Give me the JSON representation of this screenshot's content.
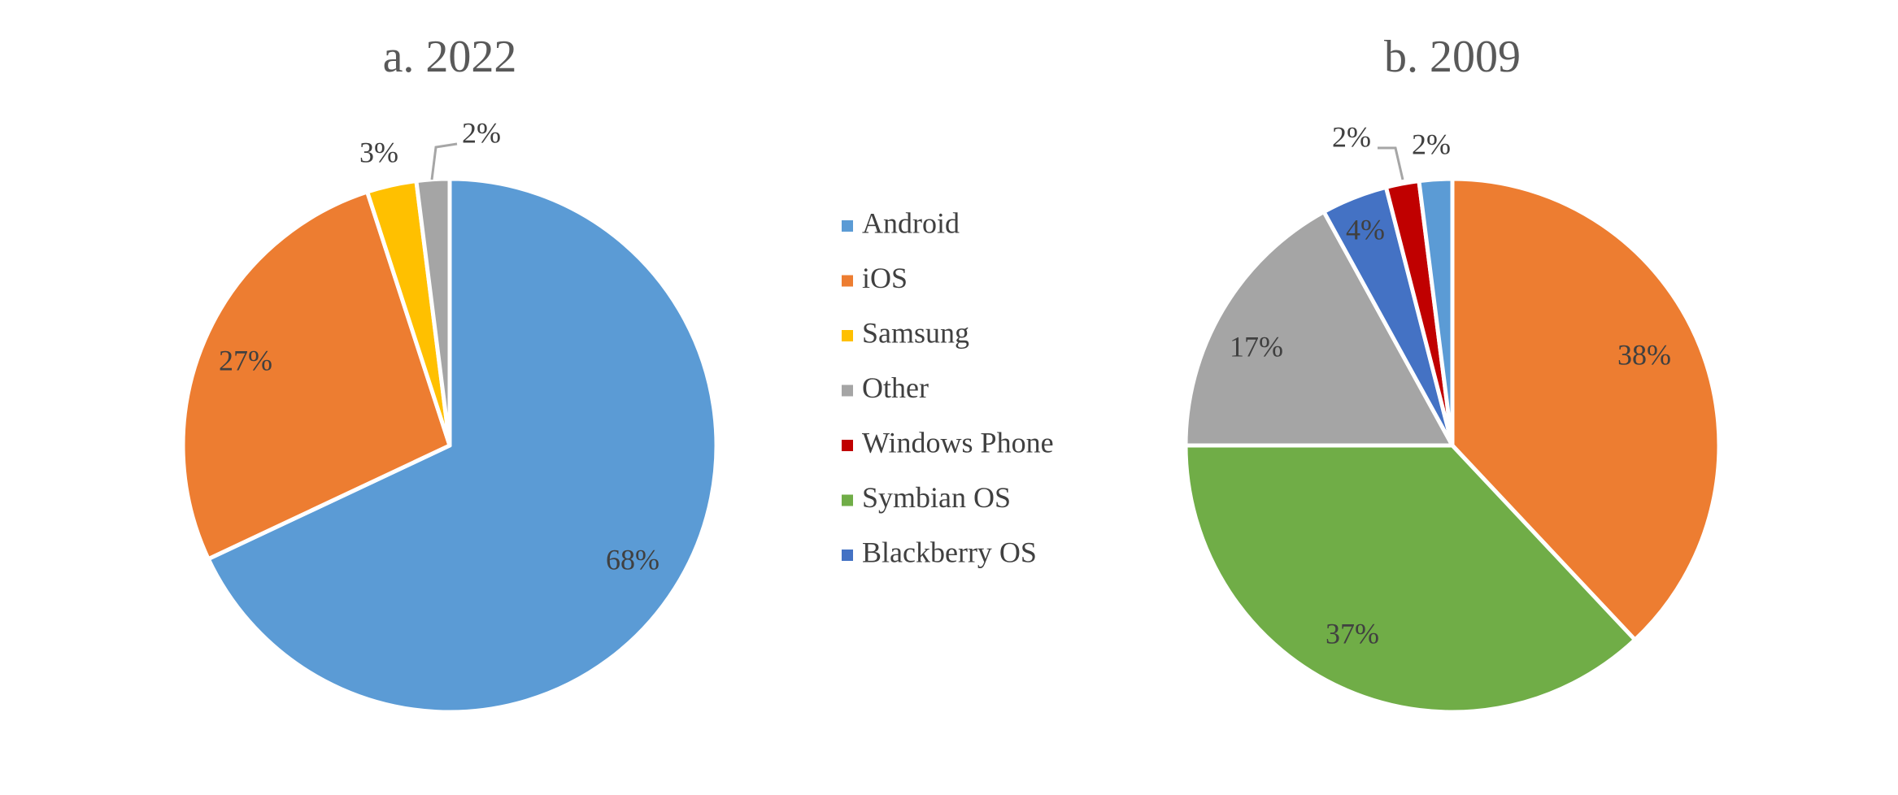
{
  "legend": [
    {
      "label": "Android",
      "color": "#5B9BD5"
    },
    {
      "label": "iOS",
      "color": "#ED7D31"
    },
    {
      "label": "Samsung",
      "color": "#FFC000"
    },
    {
      "label": "Other",
      "color": "#A5A5A5"
    },
    {
      "label": "Windows Phone",
      "color": "#C00000"
    },
    {
      "label": "Symbian OS",
      "color": "#70AD47"
    },
    {
      "label": "Blackberry OS",
      "color": "#4472C4"
    }
  ],
  "chart_data": [
    {
      "type": "pie",
      "title": "a. 2022",
      "slices": [
        {
          "name": "Android",
          "value": 68,
          "label": "68%",
          "color": "#5B9BD5"
        },
        {
          "name": "iOS",
          "value": 27,
          "label": "27%",
          "color": "#ED7D31"
        },
        {
          "name": "Samsung",
          "value": 3,
          "label": "3%",
          "color": "#FFC000"
        },
        {
          "name": "Other",
          "value": 2,
          "label": "2%",
          "color": "#A5A5A5"
        }
      ]
    },
    {
      "type": "pie",
      "title": "b. 2009",
      "slices": [
        {
          "name": "iOS",
          "value": 38,
          "label": "38%",
          "color": "#ED7D31"
        },
        {
          "name": "Symbian OS",
          "value": 37,
          "label": "37%",
          "color": "#70AD47"
        },
        {
          "name": "Other",
          "value": 17,
          "label": "17%",
          "color": "#A5A5A5"
        },
        {
          "name": "Blackberry OS",
          "value": 4,
          "label": "4%",
          "color": "#4472C4"
        },
        {
          "name": "Windows Phone",
          "value": 2,
          "label": "2%",
          "color": "#C00000"
        },
        {
          "name": "Android",
          "value": 2,
          "label": "2%",
          "color": "#5B9BD5"
        }
      ]
    }
  ]
}
